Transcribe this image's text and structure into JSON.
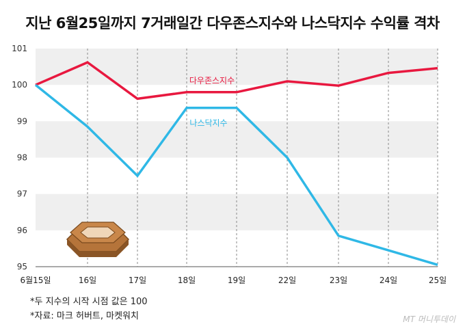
{
  "title": "지난 6월25일까지 7거래일간 다우존스지수와 나스닥지수 수익률 격차",
  "chart_data": {
    "type": "line",
    "title": "지난 6월25일까지 7거래일간 다우존스지수와 나스닥지수 수익률 격차",
    "categories": [
      "6월15일",
      "16일",
      "17일",
      "18일",
      "19일",
      "22일",
      "23일",
      "24일",
      "25일"
    ],
    "y_ticks": [
      "101",
      "100",
      "99",
      "98",
      "97",
      "96",
      "95"
    ],
    "ylim": [
      95,
      101
    ],
    "grid": "horizontal bands and dashed vertical lines",
    "series": [
      {
        "name": "다우존스지수",
        "color": "#e8183f",
        "values": [
          100.0,
          100.62,
          99.62,
          99.8,
          99.8,
          100.1,
          99.98,
          100.33,
          100.46
        ]
      },
      {
        "name": "나스닥지수",
        "color": "#2fb8e6",
        "values": [
          100.0,
          98.85,
          97.5,
          99.37,
          99.37,
          98.0,
          95.85,
          95.45,
          95.05
        ]
      }
    ]
  },
  "notes": {
    "note1": "*두 지수의 시작 시점 값은 100",
    "note2": "*자료: 마크 허버트, 마켓워치"
  },
  "watermark": "MT 머니투데이"
}
